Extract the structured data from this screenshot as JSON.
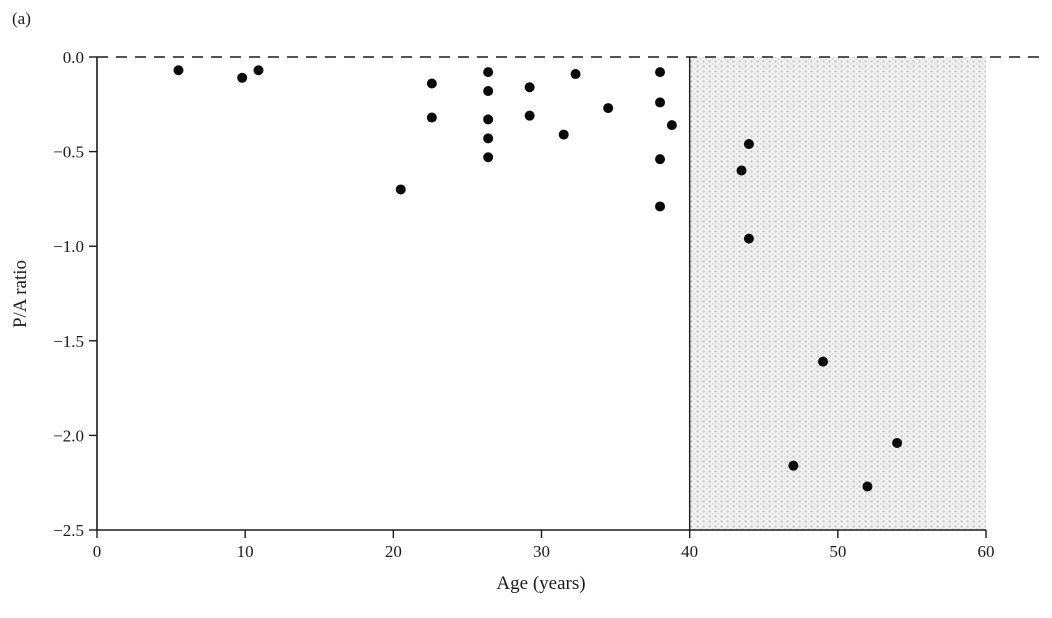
{
  "figure_label": "(a)",
  "colors": {
    "point": "#0a0a0a",
    "axis": "#1a1a1a",
    "shade_dot": "#c6c6c6",
    "shade_bg": "#f2f2f2"
  },
  "chart_data": {
    "type": "scatter",
    "xlabel": "Age (years)",
    "ylabel": "P/A ratio",
    "xlim": [
      0,
      60
    ],
    "ylim": [
      -2.5,
      0
    ],
    "xticks": [
      0,
      10,
      20,
      30,
      40,
      50,
      60
    ],
    "xtick_labels": [
      "0",
      "10",
      "20",
      "30",
      "40",
      "50",
      "60"
    ],
    "yticks": [
      0,
      -0.5,
      -1.0,
      -1.5,
      -2.0,
      -2.5
    ],
    "ytick_labels": [
      "0.0",
      "−0.5",
      "−1.0",
      "−1.5",
      "−2.0",
      "−2.5"
    ],
    "grid": false,
    "reference_line": {
      "y": 0,
      "style": "dashed"
    },
    "vertical_line": {
      "x": 40,
      "style": "solid"
    },
    "shaded_region": {
      "x_start": 40,
      "x_end": 60,
      "style": "stippled"
    },
    "points": [
      [
        5.5,
        -0.07
      ],
      [
        9.8,
        -0.11
      ],
      [
        10.9,
        -0.07
      ],
      [
        20.5,
        -0.7
      ],
      [
        22.6,
        -0.14
      ],
      [
        22.6,
        -0.32
      ],
      [
        26.4,
        -0.08
      ],
      [
        26.4,
        -0.18
      ],
      [
        26.4,
        -0.33
      ],
      [
        26.4,
        -0.43
      ],
      [
        26.4,
        -0.53
      ],
      [
        29.2,
        -0.16
      ],
      [
        29.2,
        -0.31
      ],
      [
        31.5,
        -0.41
      ],
      [
        32.3,
        -0.09
      ],
      [
        34.5,
        -0.27
      ],
      [
        38.0,
        -0.08
      ],
      [
        38.0,
        -0.24
      ],
      [
        38.0,
        -0.54
      ],
      [
        38.0,
        -0.79
      ],
      [
        38.8,
        -0.36
      ],
      [
        43.5,
        -0.6
      ],
      [
        44.0,
        -0.46
      ],
      [
        44.0,
        -0.96
      ],
      [
        47.0,
        -2.16
      ],
      [
        49.0,
        -1.61
      ],
      [
        52.0,
        -2.27
      ],
      [
        54.0,
        -2.04
      ]
    ]
  }
}
